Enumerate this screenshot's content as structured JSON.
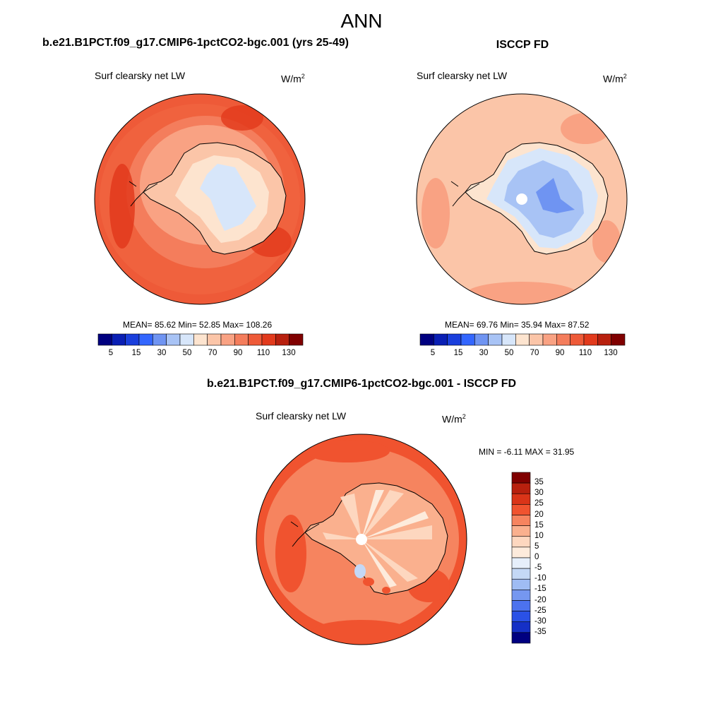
{
  "page_title": "ANN",
  "panels": [
    {
      "title": "b.e21.B1PCT.f09_g17.CMIP6-1pctCO2-bgc.001 (yrs 25-49)",
      "variable": "Surf clearsky net LW",
      "units_base": "W/m",
      "units_exp": "2",
      "stats": "MEAN=  85.62  Min=  52.85  Max= 108.26",
      "colorbar_ticks": [
        "5",
        "15",
        "30",
        "50",
        "70",
        "90",
        "110",
        "130"
      ]
    },
    {
      "title": "ISCCP FD",
      "variable": "Surf clearsky net LW",
      "units_base": "W/m",
      "units_exp": "2",
      "stats": "MEAN=  69.76  Min=  35.94  Max=  87.52",
      "colorbar_ticks": [
        "5",
        "15",
        "30",
        "50",
        "70",
        "90",
        "110",
        "130"
      ]
    },
    {
      "title": "b.e21.B1PCT.f09_g17.CMIP6-1pctCO2-bgc.001 - ISCCP FD",
      "variable": "Surf clearsky net LW",
      "units_base": "W/m",
      "units_exp": "2",
      "stats": "MIN =  -6.11 MAX =  31.95",
      "colorbar_ticks": [
        "35",
        "30",
        "25",
        "20",
        "15",
        "10",
        "5",
        "0",
        "-5",
        "-10",
        "-15",
        "-20",
        "-25",
        "-30",
        "-35"
      ]
    }
  ],
  "colors": {
    "abs_scale": [
      "#000080",
      "#0a1fb4",
      "#1a3fdc",
      "#3366ff",
      "#6f94f2",
      "#a8c3f5",
      "#d7e6fa",
      "#fde4cf",
      "#fbc5a8",
      "#f9a283",
      "#f47d5c",
      "#ee5a38",
      "#e23a1c",
      "#b8200e",
      "#800000"
    ],
    "diff_scale": [
      "#800000",
      "#b8200e",
      "#da3418",
      "#f0532f",
      "#f6845f",
      "#fab08e",
      "#fdd7bf",
      "#fdebdc",
      "#e6effb",
      "#c4d8f6",
      "#9fbcf3",
      "#7597f0",
      "#4c72ee",
      "#2a51e6",
      "#1530c6",
      "#000080"
    ]
  }
}
